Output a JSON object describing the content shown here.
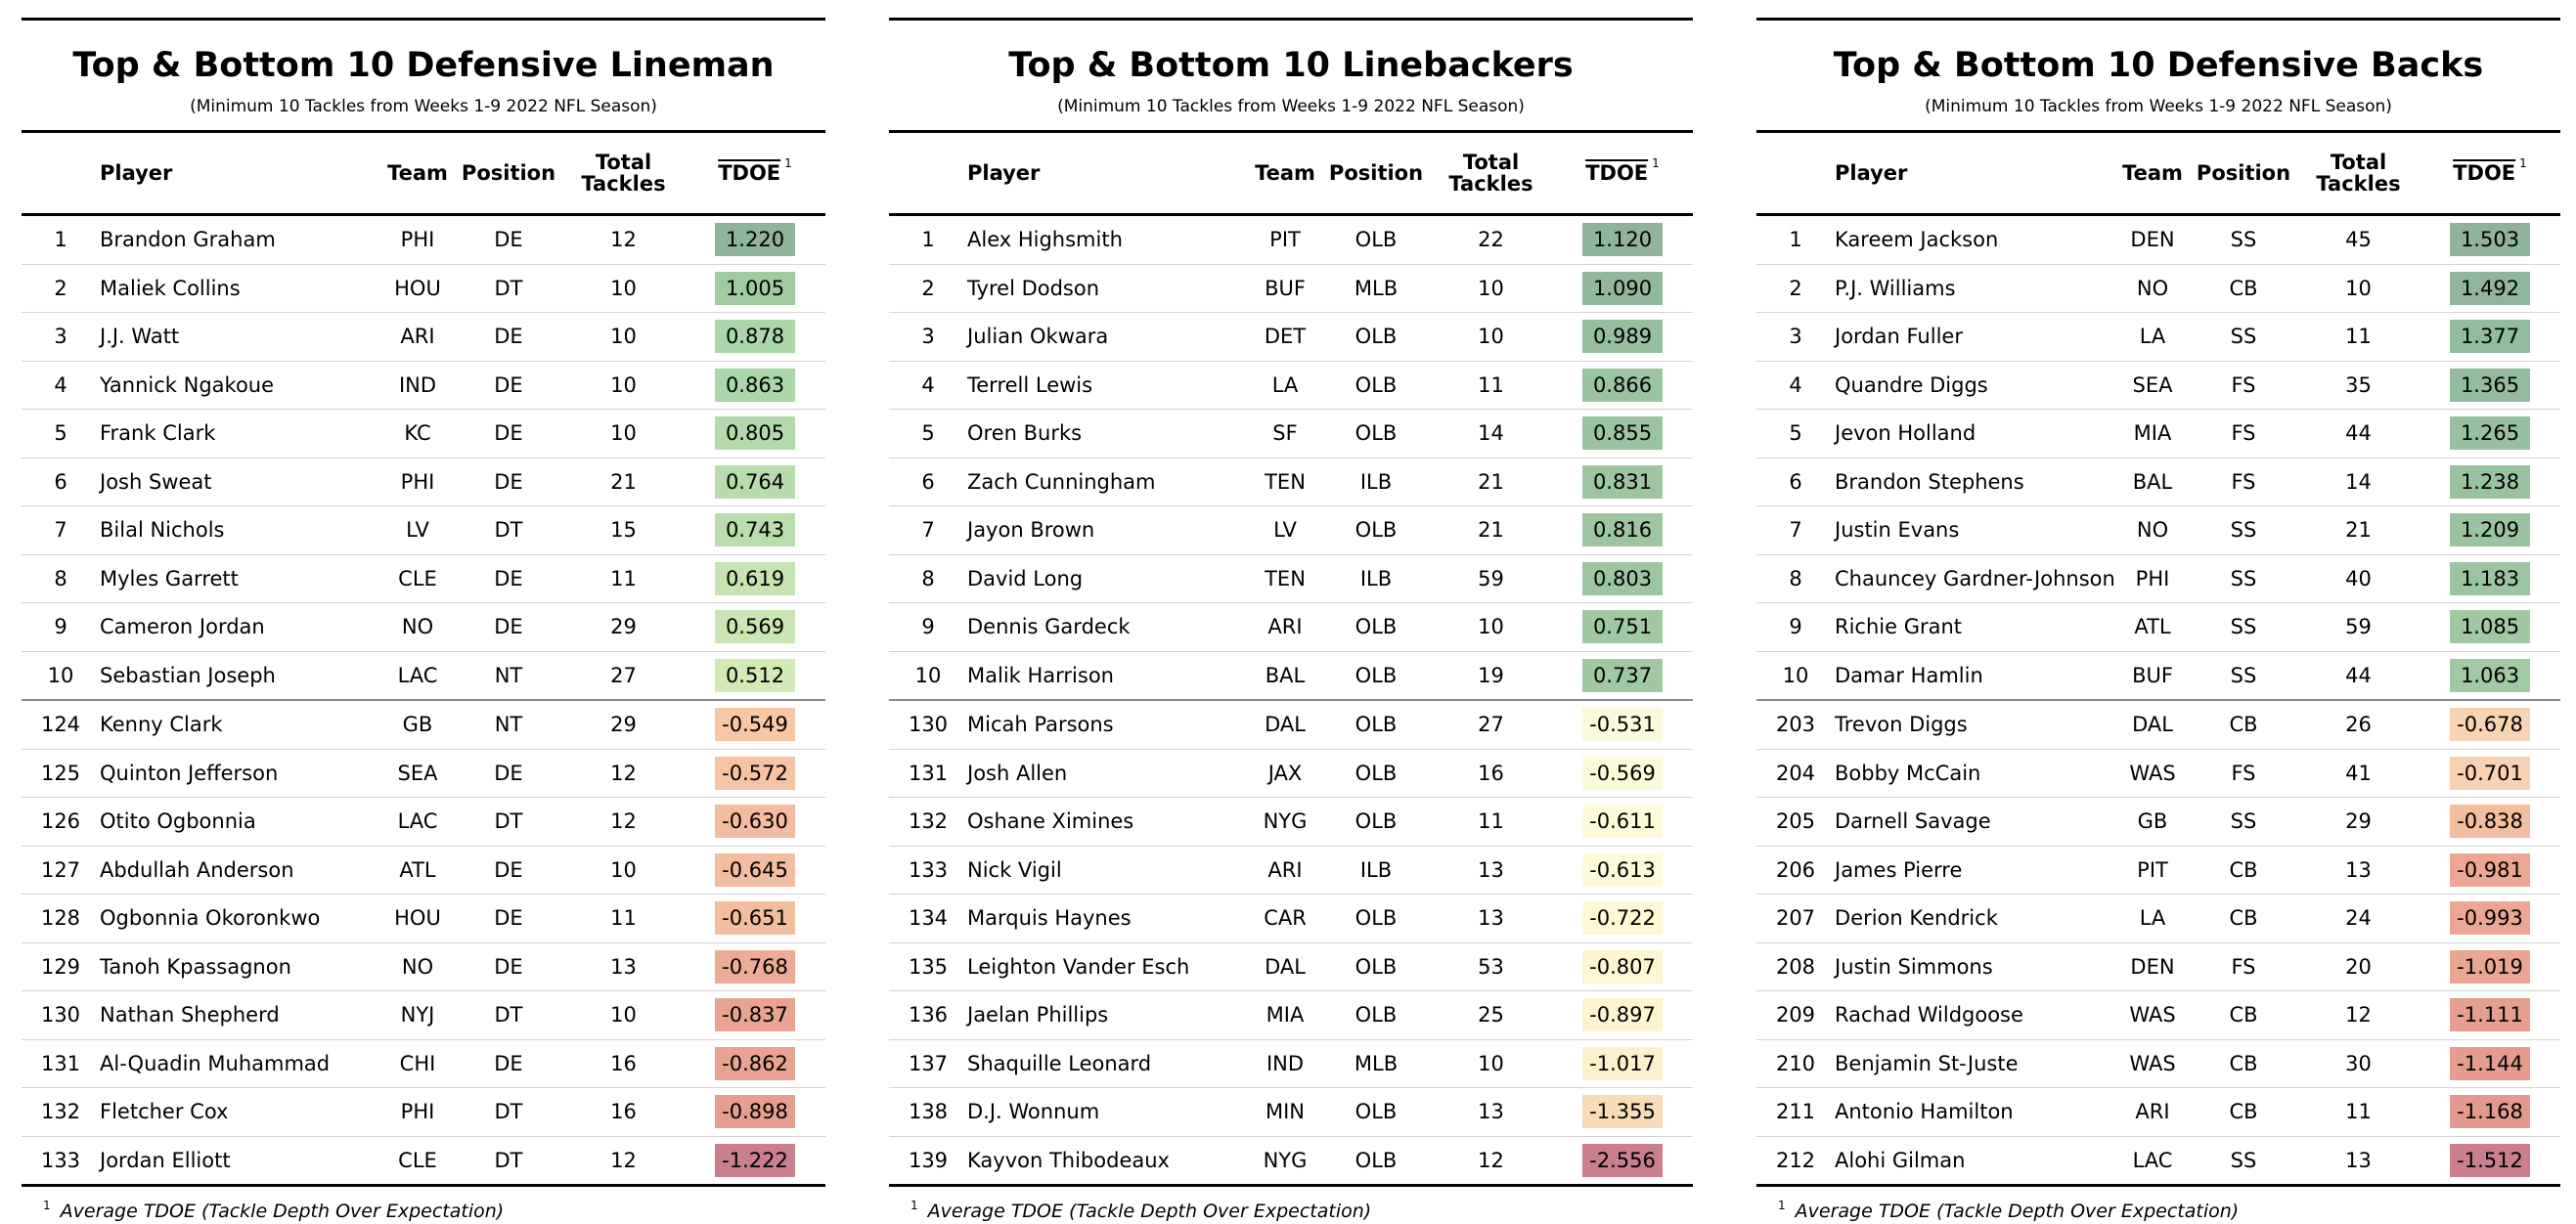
{
  "colors": {
    "pos_strong": "#90b49b",
    "pos_mid": "#a6d2a6",
    "pos_light": "#cfe8b0",
    "neg_pale": "#fffbd9",
    "neg_light": "#f9d7b6",
    "neg_mid": "#eda592",
    "neg_strong": "#c97f8d"
  },
  "columns": {
    "player": "Player",
    "team": "Team",
    "position": "Position",
    "tackles_line1": "Total",
    "tackles_line2": "Tackles",
    "tdoe": "TDOE",
    "tdoe_sup": "1"
  },
  "footnote": {
    "marker": "1",
    "text": "Average TDOE (Tackle Depth Over Expectation)"
  },
  "panels": [
    {
      "title": "Top & Bottom 10 Defensive Lineman",
      "subtitle": "(Minimum 10 Tackles from Weeks 1-9 2022 NFL Season)",
      "rows": [
        {
          "rank": "1",
          "player": "Brandon Graham",
          "team": "PHI",
          "position": "DE",
          "tackles": "12",
          "tdoe": "1.220",
          "color": "#90b49b"
        },
        {
          "rank": "2",
          "player": "Maliek Collins",
          "team": "HOU",
          "position": "DT",
          "tackles": "10",
          "tdoe": "1.005",
          "color": "#9fcc9f"
        },
        {
          "rank": "3",
          "player": "J.J. Watt",
          "team": "ARI",
          "position": "DE",
          "tackles": "10",
          "tdoe": "0.878",
          "color": "#abd6a8"
        },
        {
          "rank": "4",
          "player": "Yannick Ngakoue",
          "team": "IND",
          "position": "DE",
          "tackles": "10",
          "tdoe": "0.863",
          "color": "#abd6a8"
        },
        {
          "rank": "5",
          "player": "Frank Clark",
          "team": "KC",
          "position": "DE",
          "tackles": "10",
          "tdoe": "0.805",
          "color": "#b2daab"
        },
        {
          "rank": "6",
          "player": "Josh Sweat",
          "team": "PHI",
          "position": "DE",
          "tackles": "21",
          "tdoe": "0.764",
          "color": "#b7ddad"
        },
        {
          "rank": "7",
          "player": "Bilal Nichols",
          "team": "LV",
          "position": "DT",
          "tackles": "15",
          "tdoe": "0.743",
          "color": "#b9dead"
        },
        {
          "rank": "8",
          "player": "Myles Garrett",
          "team": "CLE",
          "position": "DE",
          "tackles": "11",
          "tdoe": "0.619",
          "color": "#c6e4b1"
        },
        {
          "rank": "9",
          "player": "Cameron Jordan",
          "team": "NO",
          "position": "DE",
          "tackles": "29",
          "tdoe": "0.569",
          "color": "#cbe6b2"
        },
        {
          "rank": "10",
          "player": "Sebastian Joseph",
          "team": "LAC",
          "position": "NT",
          "tackles": "27",
          "tdoe": "0.512",
          "color": "#d3eab6"
        },
        {
          "rank": "124",
          "player": "Kenny Clark",
          "team": "GB",
          "position": "NT",
          "tackles": "29",
          "tdoe": "-0.549",
          "color": "#f7c7a6"
        },
        {
          "rank": "125",
          "player": "Quinton Jefferson",
          "team": "SEA",
          "position": "DE",
          "tackles": "12",
          "tdoe": "-0.572",
          "color": "#f6c4a4"
        },
        {
          "rank": "126",
          "player": "Otito Ogbonnia",
          "team": "LAC",
          "position": "DT",
          "tackles": "12",
          "tdoe": "-0.630",
          "color": "#f3bb9f"
        },
        {
          "rank": "127",
          "player": "Abdullah Anderson",
          "team": "ATL",
          "position": "DE",
          "tackles": "10",
          "tdoe": "-0.645",
          "color": "#f3bda0"
        },
        {
          "rank": "128",
          "player": "Ogbonnia Okoronkwo",
          "team": "HOU",
          "position": "DE",
          "tackles": "11",
          "tdoe": "-0.651",
          "color": "#f3bda0"
        },
        {
          "rank": "129",
          "player": "Tanoh Kpassagnon",
          "team": "NO",
          "position": "DE",
          "tackles": "13",
          "tdoe": "-0.768",
          "color": "#ecab94"
        },
        {
          "rank": "130",
          "player": "Nathan Shepherd",
          "team": "NYJ",
          "position": "DT",
          "tackles": "10",
          "tdoe": "-0.837",
          "color": "#e8a391"
        },
        {
          "rank": "131",
          "player": "Al-Quadin Muhammad",
          "team": "CHI",
          "position": "DE",
          "tackles": "16",
          "tdoe": "-0.862",
          "color": "#e8a391"
        },
        {
          "rank": "132",
          "player": "Fletcher Cox",
          "team": "PHI",
          "position": "DT",
          "tackles": "16",
          "tdoe": "-0.898",
          "color": "#e59f8f"
        },
        {
          "rank": "133",
          "player": "Jordan Elliott",
          "team": "CLE",
          "position": "DT",
          "tackles": "12",
          "tdoe": "-1.222",
          "color": "#c97f8d"
        }
      ]
    },
    {
      "title": "Top & Bottom 10 Linebackers",
      "subtitle": "(Minimum 10 Tackles from Weeks 1-9 2022 NFL Season)",
      "rows": [
        {
          "rank": "1",
          "player": "Alex Highsmith",
          "team": "PIT",
          "position": "OLB",
          "tackles": "22",
          "tdoe": "1.120",
          "color": "#90b49b"
        },
        {
          "rank": "2",
          "player": "Tyrel Dodson",
          "team": "BUF",
          "position": "MLB",
          "tackles": "10",
          "tdoe": "1.090",
          "color": "#92b89c"
        },
        {
          "rank": "3",
          "player": "Julian Okwara",
          "team": "DET",
          "position": "OLB",
          "tackles": "10",
          "tdoe": "0.989",
          "color": "#96bf9e"
        },
        {
          "rank": "4",
          "player": "Terrell Lewis",
          "team": "LA",
          "position": "OLB",
          "tackles": "11",
          "tdoe": "0.866",
          "color": "#9ac39f"
        },
        {
          "rank": "5",
          "player": "Oren Burks",
          "team": "SF",
          "position": "OLB",
          "tackles": "14",
          "tdoe": "0.855",
          "color": "#9ac39f"
        },
        {
          "rank": "6",
          "player": "Zach Cunningham",
          "team": "TEN",
          "position": "ILB",
          "tackles": "21",
          "tdoe": "0.831",
          "color": "#9cc5a0"
        },
        {
          "rank": "7",
          "player": "Jayon Brown",
          "team": "LV",
          "position": "OLB",
          "tackles": "21",
          "tdoe": "0.816",
          "color": "#9cc5a0"
        },
        {
          "rank": "8",
          "player": "David Long",
          "team": "TEN",
          "position": "ILB",
          "tackles": "59",
          "tdoe": "0.803",
          "color": "#9dc6a0"
        },
        {
          "rank": "9",
          "player": "Dennis Gardeck",
          "team": "ARI",
          "position": "OLB",
          "tackles": "10",
          "tdoe": "0.751",
          "color": "#a0c9a1"
        },
        {
          "rank": "10",
          "player": "Malik Harrison",
          "team": "BAL",
          "position": "OLB",
          "tackles": "19",
          "tdoe": "0.737",
          "color": "#a0c9a1"
        },
        {
          "rank": "130",
          "player": "Micah Parsons",
          "team": "DAL",
          "position": "OLB",
          "tackles": "27",
          "tdoe": "-0.531",
          "color": "#fafbd8"
        },
        {
          "rank": "131",
          "player": "Josh Allen",
          "team": "JAX",
          "position": "OLB",
          "tackles": "16",
          "tdoe": "-0.569",
          "color": "#fcfbd8"
        },
        {
          "rank": "132",
          "player": "Oshane Ximines",
          "team": "NYG",
          "position": "OLB",
          "tackles": "11",
          "tdoe": "-0.611",
          "color": "#fdfbd8"
        },
        {
          "rank": "133",
          "player": "Nick Vigil",
          "team": "ARI",
          "position": "ILB",
          "tackles": "13",
          "tdoe": "-0.613",
          "color": "#fdfbd8"
        },
        {
          "rank": "134",
          "player": "Marquis Haynes",
          "team": "CAR",
          "position": "OLB",
          "tackles": "13",
          "tdoe": "-0.722",
          "color": "#fef8d4"
        },
        {
          "rank": "135",
          "player": "Leighton Vander Esch",
          "team": "DAL",
          "position": "OLB",
          "tackles": "53",
          "tdoe": "-0.807",
          "color": "#fef6d2"
        },
        {
          "rank": "136",
          "player": "Jaelan Phillips",
          "team": "MIA",
          "position": "OLB",
          "tackles": "25",
          "tdoe": "-0.897",
          "color": "#fef5d0"
        },
        {
          "rank": "137",
          "player": "Shaquille Leonard",
          "team": "IND",
          "position": "MLB",
          "tackles": "10",
          "tdoe": "-1.017",
          "color": "#fdf1cb"
        },
        {
          "rank": "138",
          "player": "D.J. Wonnum",
          "team": "MIN",
          "position": "OLB",
          "tackles": "13",
          "tdoe": "-1.355",
          "color": "#f9dcb7"
        },
        {
          "rank": "139",
          "player": "Kayvon Thibodeaux",
          "team": "NYG",
          "position": "OLB",
          "tackles": "12",
          "tdoe": "-2.556",
          "color": "#c97f8d"
        }
      ]
    },
    {
      "title": "Top & Bottom 10 Defensive Backs",
      "subtitle": "(Minimum 10 Tackles from Weeks 1-9 2022 NFL Season)",
      "rows": [
        {
          "rank": "1",
          "player": "Kareem Jackson",
          "team": "DEN",
          "position": "SS",
          "tackles": "45",
          "tdoe": "1.503",
          "color": "#90b49b"
        },
        {
          "rank": "2",
          "player": "P.J. Williams",
          "team": "NO",
          "position": "CB",
          "tackles": "10",
          "tdoe": "1.492",
          "color": "#90b59b"
        },
        {
          "rank": "3",
          "player": "Jordan Fuller",
          "team": "LA",
          "position": "SS",
          "tackles": "11",
          "tdoe": "1.377",
          "color": "#94bb9d"
        },
        {
          "rank": "4",
          "player": "Quandre Diggs",
          "team": "SEA",
          "position": "FS",
          "tackles": "35",
          "tdoe": "1.365",
          "color": "#94bb9d"
        },
        {
          "rank": "5",
          "player": "Jevon Holland",
          "team": "MIA",
          "position": "FS",
          "tackles": "44",
          "tdoe": "1.265",
          "color": "#98c09e"
        },
        {
          "rank": "6",
          "player": "Brandon Stephens",
          "team": "BAL",
          "position": "FS",
          "tackles": "14",
          "tdoe": "1.238",
          "color": "#99c29f"
        },
        {
          "rank": "7",
          "player": "Justin Evans",
          "team": "NO",
          "position": "SS",
          "tackles": "21",
          "tdoe": "1.209",
          "color": "#9ac39f"
        },
        {
          "rank": "8",
          "player": "Chauncey Gardner-Johnson",
          "team": "PHI",
          "position": "SS",
          "tackles": "40",
          "tdoe": "1.183",
          "color": "#9bc4a0"
        },
        {
          "rank": "9",
          "player": "Richie Grant",
          "team": "ATL",
          "position": "SS",
          "tackles": "59",
          "tdoe": "1.085",
          "color": "#a0c9a1"
        },
        {
          "rank": "10",
          "player": "Damar Hamlin",
          "team": "BUF",
          "position": "SS",
          "tackles": "44",
          "tdoe": "1.063",
          "color": "#a1caa2"
        },
        {
          "rank": "203",
          "player": "Trevon Diggs",
          "team": "DAL",
          "position": "CB",
          "tackles": "26",
          "tdoe": "-0.678",
          "color": "#f8d4b4"
        },
        {
          "rank": "204",
          "player": "Bobby McCain",
          "team": "WAS",
          "position": "FS",
          "tackles": "41",
          "tdoe": "-0.701",
          "color": "#f7d1b2"
        },
        {
          "rank": "205",
          "player": "Darnell Savage",
          "team": "GB",
          "position": "SS",
          "tackles": "29",
          "tdoe": "-0.838",
          "color": "#f3bda0"
        },
        {
          "rank": "206",
          "player": "James Pierre",
          "team": "PIT",
          "position": "CB",
          "tackles": "13",
          "tdoe": "-0.981",
          "color": "#eca794"
        },
        {
          "rank": "207",
          "player": "Derion Kendrick",
          "team": "LA",
          "position": "CB",
          "tackles": "24",
          "tdoe": "-0.993",
          "color": "#eca794"
        },
        {
          "rank": "208",
          "player": "Justin Simmons",
          "team": "DEN",
          "position": "FS",
          "tackles": "20",
          "tdoe": "-1.019",
          "color": "#eba593"
        },
        {
          "rank": "209",
          "player": "Rachad Wildgoose",
          "team": "WAS",
          "position": "CB",
          "tackles": "12",
          "tdoe": "-1.111",
          "color": "#e69f8f"
        },
        {
          "rank": "210",
          "player": "Benjamin St-Juste",
          "team": "WAS",
          "position": "CB",
          "tackles": "30",
          "tdoe": "-1.144",
          "color": "#e49c8f"
        },
        {
          "rank": "211",
          "player": "Antonio Hamilton",
          "team": "ARI",
          "position": "CB",
          "tackles": "11",
          "tdoe": "-1.168",
          "color": "#e39a8e"
        },
        {
          "rank": "212",
          "player": "Alohi Gilman",
          "team": "LAC",
          "position": "SS",
          "tackles": "13",
          "tdoe": "-1.512",
          "color": "#c97f8d"
        }
      ]
    }
  ]
}
